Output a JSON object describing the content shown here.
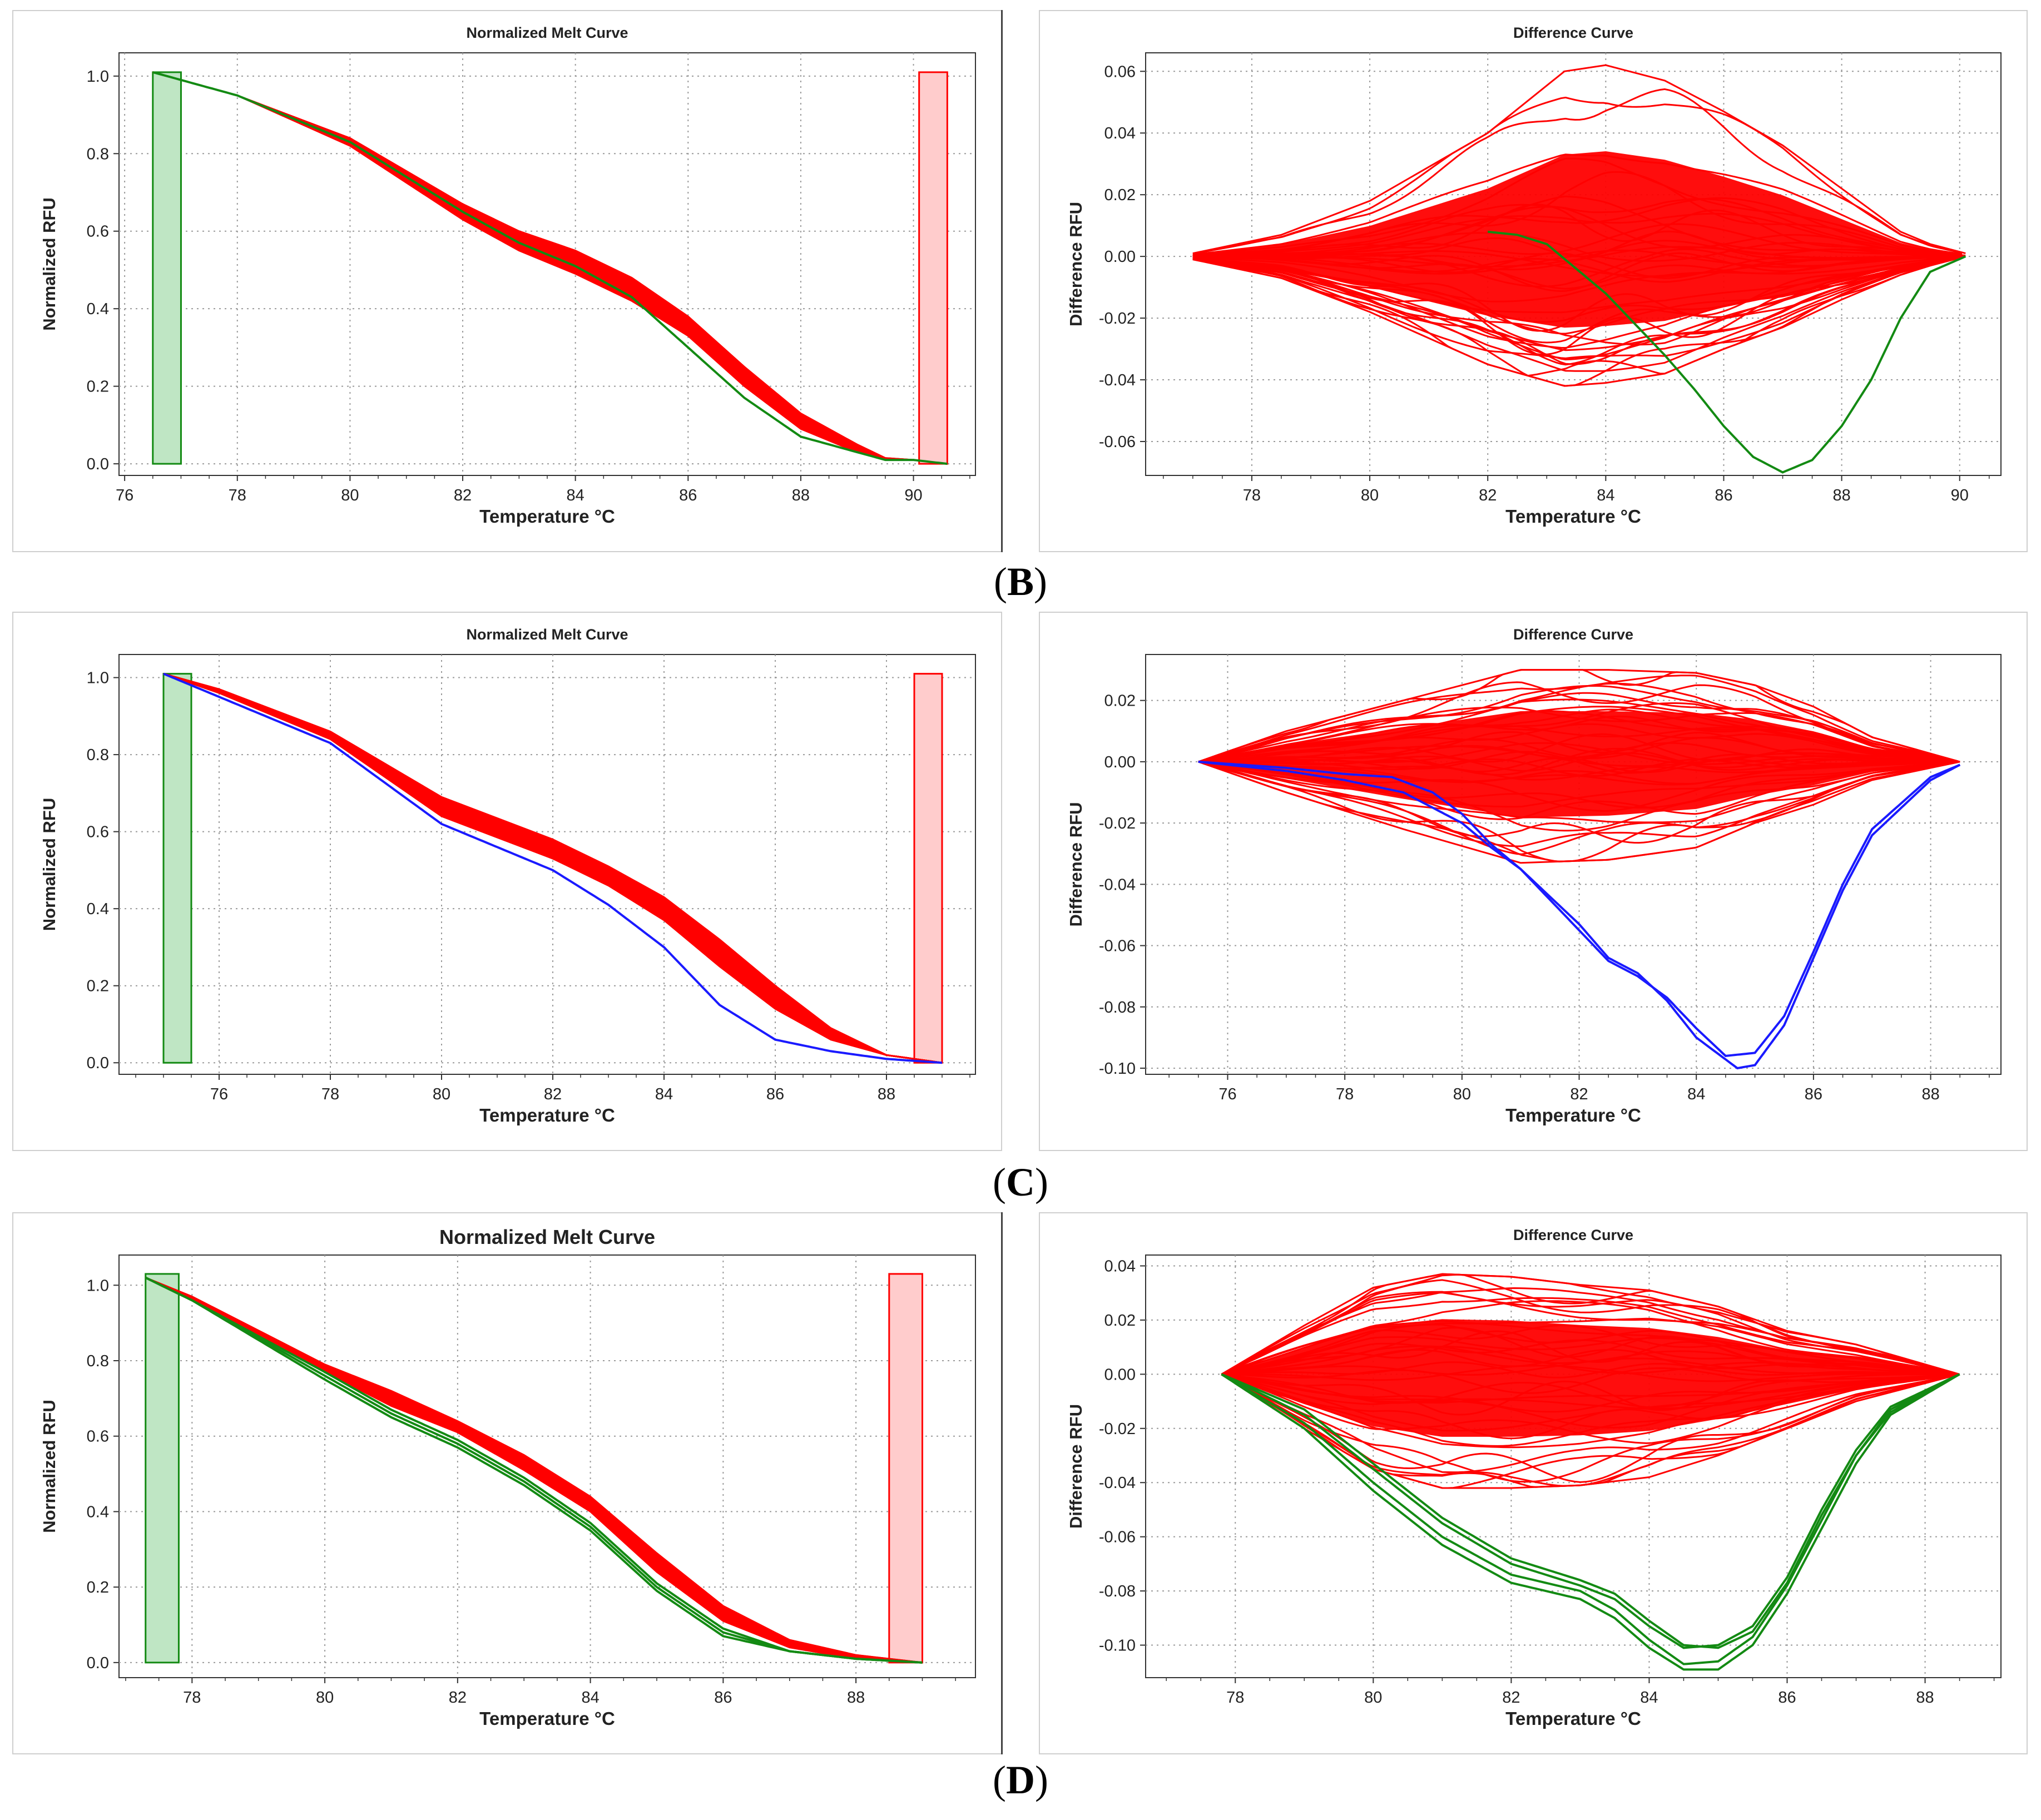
{
  "figure": {
    "sublabels": [
      {
        "id": "B",
        "text": "B"
      },
      {
        "id": "C",
        "text": "C"
      },
      {
        "id": "D",
        "text": "D"
      }
    ]
  },
  "colors": {
    "red": "#ff0000",
    "green": "#138a13",
    "blue": "#1a1aff",
    "green_fill": "#bfe6c4",
    "red_fill": "#ffcccc",
    "grid": "#9a9a9a"
  },
  "chart_data": [
    {
      "id": "B-melt",
      "type": "line",
      "title": "Normalized Melt Curve",
      "xlabel": "Temperature °C",
      "ylabel": "Normalized RFU",
      "xlim": [
        75.9,
        91.1
      ],
      "ylim": [
        -0.03,
        1.06
      ],
      "xticks": [
        76,
        78,
        80,
        82,
        84,
        86,
        88,
        90
      ],
      "yticks": [
        0.0,
        0.2,
        0.4,
        0.6,
        0.8,
        1.0
      ],
      "ytick_labels": [
        "0.0",
        "0.2",
        "0.4",
        "0.6",
        "0.8",
        "1.0"
      ],
      "grid": true,
      "regions": [
        {
          "color": "green",
          "x": [
            76.5,
            77.0
          ],
          "y": [
            0.0,
            1.01
          ]
        },
        {
          "color": "red",
          "x": [
            90.1,
            90.6
          ],
          "y": [
            0.0,
            1.01
          ]
        }
      ],
      "band": {
        "color": "red",
        "x": [
          76.5,
          78,
          80,
          82,
          83,
          84,
          85,
          86,
          87,
          88,
          89,
          89.5,
          90.0,
          90.6
        ],
        "upper": [
          1.01,
          0.95,
          0.84,
          0.67,
          0.6,
          0.55,
          0.48,
          0.38,
          0.25,
          0.13,
          0.05,
          0.015,
          0.01,
          0.0
        ],
        "lower": [
          1.01,
          0.95,
          0.82,
          0.63,
          0.55,
          0.49,
          0.42,
          0.33,
          0.2,
          0.09,
          0.03,
          0.01,
          0.01,
          0.0
        ]
      },
      "series": [
        {
          "color": "green",
          "x": [
            76.5,
            78,
            80,
            82,
            83,
            84,
            85,
            86,
            87,
            88,
            89,
            89.5,
            90.0,
            90.6
          ],
          "y": [
            1.01,
            0.95,
            0.83,
            0.65,
            0.57,
            0.51,
            0.43,
            0.3,
            0.17,
            0.07,
            0.03,
            0.01,
            0.01,
            0.0
          ]
        }
      ]
    },
    {
      "id": "B-diff",
      "type": "line",
      "title": "Difference Curve",
      "xlabel": "Temperature °C",
      "ylabel": "Difference RFU",
      "xlim": [
        76.2,
        90.7
      ],
      "ylim": [
        -0.071,
        0.066
      ],
      "xticks": [
        78,
        80,
        82,
        84,
        86,
        88,
        90
      ],
      "yticks": [
        -0.06,
        -0.04,
        -0.02,
        0.0,
        0.02,
        0.04,
        0.06
      ],
      "ytick_labels": [
        "-0.06",
        "-0.04",
        "-0.02",
        "0.00",
        "0.02",
        "0.04",
        "0.06"
      ],
      "grid": true,
      "envelope": {
        "color": "red",
        "x": [
          77.0,
          78.5,
          80.0,
          82.0,
          83.3,
          84.0,
          85.0,
          86.0,
          87.0,
          88.0,
          89.0,
          89.5,
          90.1
        ],
        "upper": [
          0.001,
          0.007,
          0.018,
          0.04,
          0.06,
          0.062,
          0.057,
          0.047,
          0.036,
          0.022,
          0.008,
          0.004,
          0.001
        ],
        "lower": [
          -0.001,
          -0.007,
          -0.018,
          -0.035,
          -0.042,
          -0.041,
          -0.038,
          -0.03,
          -0.023,
          -0.014,
          -0.006,
          -0.003,
          0.0
        ],
        "count": 40,
        "seed": 7
      },
      "series": [
        {
          "color": "green",
          "x": [
            82.0,
            82.5,
            83.0,
            83.5,
            84.0,
            84.5,
            85.0,
            85.5,
            86.0,
            86.5,
            87.0,
            87.5,
            88.0,
            88.5,
            89.0,
            89.5,
            90.1
          ],
          "y": [
            0.008,
            0.007,
            0.004,
            -0.004,
            -0.012,
            -0.022,
            -0.032,
            -0.043,
            -0.055,
            -0.065,
            -0.07,
            -0.066,
            -0.055,
            -0.04,
            -0.02,
            -0.005,
            0.0
          ]
        }
      ]
    },
    {
      "id": "C-melt",
      "type": "line",
      "title": "Normalized Melt Curve",
      "xlabel": "Temperature °C",
      "ylabel": "Normalized RFU",
      "xlim": [
        74.2,
        89.6
      ],
      "ylim": [
        -0.03,
        1.06
      ],
      "xticks": [
        76,
        78,
        80,
        82,
        84,
        86,
        88
      ],
      "yticks": [
        0.0,
        0.2,
        0.4,
        0.6,
        0.8,
        1.0
      ],
      "ytick_labels": [
        "0.0",
        "0.2",
        "0.4",
        "0.6",
        "0.8",
        "1.0"
      ],
      "grid": true,
      "regions": [
        {
          "color": "green",
          "x": [
            75.0,
            75.5
          ],
          "y": [
            0.0,
            1.01
          ]
        },
        {
          "color": "red",
          "x": [
            88.5,
            89.0
          ],
          "y": [
            0.0,
            1.01
          ]
        }
      ],
      "band": {
        "color": "red",
        "x": [
          75.0,
          76,
          78,
          80,
          82,
          83,
          84,
          85,
          86,
          87,
          88,
          89.0
        ],
        "upper": [
          1.01,
          0.97,
          0.86,
          0.69,
          0.58,
          0.51,
          0.43,
          0.32,
          0.2,
          0.09,
          0.02,
          0.0
        ],
        "lower": [
          1.01,
          0.96,
          0.84,
          0.64,
          0.53,
          0.46,
          0.37,
          0.25,
          0.14,
          0.06,
          0.02,
          0.0
        ],
        "count": 14,
        "seed": 11
      },
      "series": [
        {
          "color": "blue",
          "x": [
            75.0,
            76,
            78,
            80,
            81,
            82,
            83,
            84,
            85,
            86,
            87,
            88,
            89.0
          ],
          "y": [
            1.01,
            0.95,
            0.83,
            0.62,
            0.56,
            0.5,
            0.41,
            0.3,
            0.15,
            0.06,
            0.03,
            0.01,
            0.0
          ]
        }
      ]
    },
    {
      "id": "C-diff",
      "type": "line",
      "title": "Difference Curve",
      "xlabel": "Temperature °C",
      "ylabel": "Difference RFU",
      "xlim": [
        74.6,
        89.2
      ],
      "ylim": [
        -0.102,
        0.035
      ],
      "xticks": [
        76,
        78,
        80,
        82,
        84,
        86,
        88
      ],
      "yticks": [
        -0.1,
        -0.08,
        -0.06,
        -0.04,
        -0.02,
        0.0,
        0.02
      ],
      "ytick_labels": [
        "-0.10",
        "-0.08",
        "-0.06",
        "-0.04",
        "-0.02",
        "0.00",
        "0.02"
      ],
      "grid": true,
      "envelope": {
        "color": "red",
        "x": [
          75.5,
          77.0,
          79.0,
          81.0,
          82.5,
          84.0,
          85.0,
          86.0,
          87.0,
          88.5
        ],
        "upper": [
          0.0,
          0.01,
          0.02,
          0.03,
          0.03,
          0.029,
          0.025,
          0.018,
          0.008,
          0.0
        ],
        "lower": [
          0.0,
          -0.01,
          -0.022,
          -0.033,
          -0.032,
          -0.028,
          -0.02,
          -0.014,
          -0.006,
          0.0
        ],
        "count": 40,
        "seed": 23
      },
      "series": [
        {
          "color": "blue",
          "x": [
            75.5,
            77.0,
            78.0,
            79.0,
            80.0,
            80.5,
            81.0,
            82.0,
            82.5,
            83.0,
            83.5,
            84.0,
            84.5,
            85.0,
            85.5,
            86.0,
            86.5,
            87.0,
            88.0,
            88.5
          ],
          "y": [
            0.0,
            -0.003,
            -0.006,
            -0.01,
            -0.02,
            -0.028,
            -0.035,
            -0.055,
            -0.065,
            -0.07,
            -0.077,
            -0.087,
            -0.096,
            -0.095,
            -0.083,
            -0.062,
            -0.04,
            -0.022,
            -0.005,
            -0.001
          ]
        },
        {
          "color": "blue",
          "x": [
            75.5,
            77.0,
            78.0,
            78.8,
            79.5,
            80.0,
            80.5,
            81.0,
            82.0,
            82.5,
            83.0,
            83.5,
            84.0,
            84.7,
            85.0,
            85.5,
            86.0,
            86.5,
            87.0,
            88.0,
            88.5
          ],
          "y": [
            0.0,
            -0.002,
            -0.004,
            -0.005,
            -0.01,
            -0.017,
            -0.027,
            -0.035,
            -0.053,
            -0.064,
            -0.069,
            -0.078,
            -0.09,
            -0.1,
            -0.099,
            -0.086,
            -0.064,
            -0.042,
            -0.024,
            -0.006,
            -0.001
          ]
        }
      ]
    },
    {
      "id": "D-melt",
      "type": "line",
      "title": "Normalized Melt Curve",
      "xlabel": "Temperature  °C",
      "ylabel": "Normalized RFU",
      "xlim": [
        76.9,
        89.8
      ],
      "ylim": [
        -0.04,
        1.08
      ],
      "xticks": [
        78,
        80,
        82,
        84,
        86,
        88
      ],
      "yticks": [
        0.0,
        0.2,
        0.4,
        0.6,
        0.8,
        1.0
      ],
      "ytick_labels": [
        "0.0",
        "0.2",
        "0.4",
        "0.6",
        "0.8",
        "1.0"
      ],
      "grid": true,
      "regions": [
        {
          "color": "green",
          "x": [
            77.3,
            77.8
          ],
          "y": [
            0.0,
            1.03
          ]
        },
        {
          "color": "red",
          "x": [
            88.5,
            89.0
          ],
          "y": [
            0.0,
            1.03
          ]
        }
      ],
      "band": {
        "color": "red",
        "x": [
          77.3,
          78,
          80,
          81,
          82,
          83,
          84,
          85,
          86,
          87,
          88,
          89.0
        ],
        "upper": [
          1.02,
          0.97,
          0.79,
          0.72,
          0.64,
          0.55,
          0.44,
          0.29,
          0.15,
          0.06,
          0.02,
          0.0
        ],
        "lower": [
          1.02,
          0.96,
          0.77,
          0.68,
          0.61,
          0.51,
          0.4,
          0.24,
          0.11,
          0.04,
          0.01,
          0.0
        ],
        "count": 14,
        "seed": 31
      },
      "series": [
        {
          "color": "green",
          "x": [
            77.3,
            78,
            80,
            81,
            82,
            83,
            84,
            85,
            86,
            87,
            88,
            89.0
          ],
          "y": [
            1.02,
            0.96,
            0.76,
            0.66,
            0.58,
            0.48,
            0.36,
            0.2,
            0.08,
            0.03,
            0.01,
            0.0
          ]
        },
        {
          "color": "green",
          "x": [
            77.3,
            78,
            80,
            81,
            82,
            83,
            84,
            85,
            86,
            87,
            88,
            89.0
          ],
          "y": [
            1.02,
            0.96,
            0.75,
            0.65,
            0.57,
            0.47,
            0.35,
            0.19,
            0.07,
            0.03,
            0.01,
            0.0
          ]
        },
        {
          "color": "green",
          "x": [
            77.3,
            78,
            80,
            81,
            82,
            83,
            84,
            85,
            86,
            87,
            88,
            89.0
          ],
          "y": [
            1.02,
            0.96,
            0.77,
            0.67,
            0.59,
            0.49,
            0.37,
            0.21,
            0.09,
            0.03,
            0.01,
            0.0
          ]
        }
      ]
    },
    {
      "id": "D-diff",
      "type": "line",
      "title": "Difference Curve",
      "xlabel": "Temperature °C",
      "ylabel": "Difference RFU",
      "xlim": [
        76.7,
        89.1
      ],
      "ylim": [
        -0.112,
        0.044
      ],
      "xticks": [
        78,
        80,
        82,
        84,
        86,
        88
      ],
      "yticks": [
        -0.1,
        -0.08,
        -0.06,
        -0.04,
        -0.02,
        0.0,
        0.02,
        0.04
      ],
      "ytick_labels": [
        "-0.10",
        "-0.08",
        "-0.06",
        "-0.04",
        "-0.02",
        "0.00",
        "0.02",
        "0.04"
      ],
      "grid": true,
      "envelope": {
        "color": "red",
        "x": [
          77.8,
          79.0,
          80.0,
          81.0,
          82.0,
          83.0,
          84.0,
          85.0,
          86.0,
          87.0,
          88.5
        ],
        "upper": [
          0.0,
          0.018,
          0.032,
          0.037,
          0.036,
          0.033,
          0.031,
          0.025,
          0.016,
          0.011,
          0.0
        ],
        "lower": [
          0.0,
          -0.02,
          -0.035,
          -0.042,
          -0.042,
          -0.041,
          -0.038,
          -0.03,
          -0.02,
          -0.01,
          0.0
        ],
        "count": 40,
        "seed": 47
      },
      "series": [
        {
          "color": "green",
          "x": [
            77.8,
            79.0,
            80.0,
            81.0,
            82.0,
            83.0,
            83.5,
            84.0,
            84.5,
            85.0,
            85.5,
            86.0,
            86.5,
            87.0,
            87.5,
            88.5
          ],
          "y": [
            0.0,
            -0.015,
            -0.035,
            -0.055,
            -0.07,
            -0.078,
            -0.083,
            -0.093,
            -0.101,
            -0.1,
            -0.093,
            -0.075,
            -0.05,
            -0.028,
            -0.012,
            0.0
          ]
        },
        {
          "color": "green",
          "x": [
            77.8,
            79.0,
            80.0,
            81.0,
            82.0,
            83.0,
            83.5,
            84.0,
            84.5,
            85.0,
            85.5,
            86.0,
            86.5,
            87.0,
            87.5,
            88.5
          ],
          "y": [
            0.0,
            -0.018,
            -0.04,
            -0.06,
            -0.074,
            -0.08,
            -0.087,
            -0.098,
            -0.107,
            -0.106,
            -0.097,
            -0.078,
            -0.054,
            -0.03,
            -0.014,
            0.0
          ]
        },
        {
          "color": "green",
          "x": [
            77.8,
            79.0,
            80.0,
            81.0,
            82.0,
            83.0,
            83.5,
            84.0,
            84.5,
            85.0,
            85.5,
            86.0,
            86.5,
            87.0,
            87.5,
            88.5
          ],
          "y": [
            0.0,
            -0.013,
            -0.033,
            -0.053,
            -0.068,
            -0.076,
            -0.081,
            -0.091,
            -0.1,
            -0.101,
            -0.095,
            -0.077,
            -0.052,
            -0.03,
            -0.013,
            0.0
          ]
        },
        {
          "color": "green",
          "x": [
            77.8,
            79.0,
            80.0,
            81.0,
            82.0,
            83.0,
            83.5,
            84.0,
            84.5,
            85.0,
            85.5,
            86.0,
            86.5,
            87.0,
            87.5,
            88.5
          ],
          "y": [
            0.0,
            -0.02,
            -0.043,
            -0.063,
            -0.077,
            -0.083,
            -0.09,
            -0.101,
            -0.109,
            -0.109,
            -0.1,
            -0.081,
            -0.057,
            -0.033,
            -0.015,
            0.0
          ]
        }
      ]
    }
  ]
}
